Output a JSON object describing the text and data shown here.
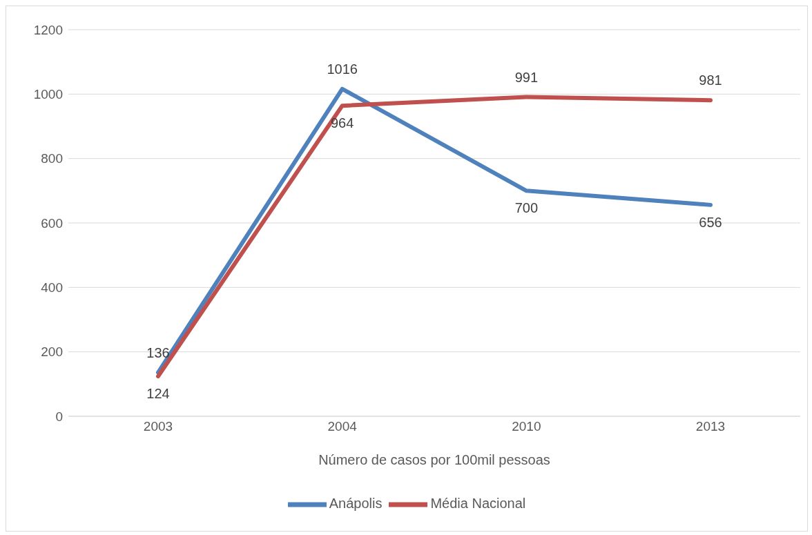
{
  "chart_data": {
    "type": "line",
    "xlabel": "Número de casos por 100mil pessoas",
    "categories": [
      "2003",
      "2004",
      "2010",
      "2013"
    ],
    "series": [
      {
        "name": "Anápolis",
        "color": "#4f81bd",
        "values": [
          136,
          1016,
          700,
          656
        ]
      },
      {
        "name": "Média Nacional",
        "color": "#c0504d",
        "values": [
          124,
          964,
          991,
          981
        ]
      }
    ],
    "ylim": [
      0,
      1200
    ],
    "yticks": [
      0,
      200,
      400,
      600,
      800,
      1000,
      1200
    ],
    "grid": "y",
    "legend": "bottom",
    "data_labels": true,
    "marker": "none",
    "line_style": "solid"
  }
}
